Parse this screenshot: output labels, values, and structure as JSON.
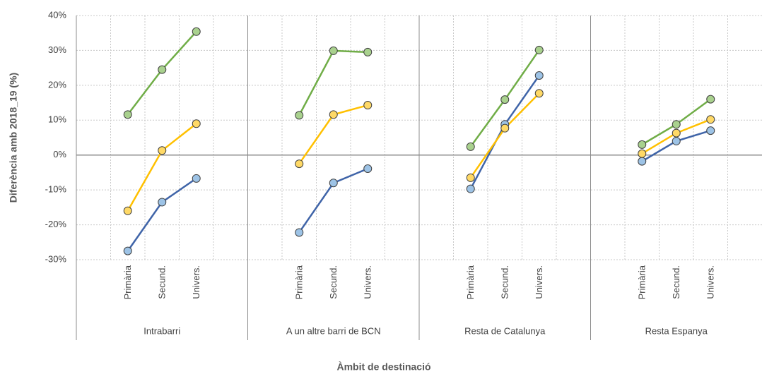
{
  "chart_data": {
    "type": "line",
    "y_axis_label": "Diferència amb  2018_19 (%)",
    "x_axis_label": "Àmbit de destinació",
    "groups": [
      "Intrabarri",
      "A un altre barri de BCN",
      "Resta de Catalunya",
      "Resta Espanya"
    ],
    "categories": [
      "Primària",
      "Secund.",
      "Univers.",
      "Primària",
      "Secund.",
      "Univers.",
      "Primària",
      "Secund.",
      "Univers.",
      "Primària",
      "Secund.",
      "Univers."
    ],
    "series": [
      {
        "color": "#3f64a8",
        "marker_color": "#9dc3e6",
        "values": [
          -27.5,
          -13.5,
          -6.7,
          -22.2,
          -8,
          -3.9,
          -9.7,
          8.8,
          22.8,
          -1.8,
          4,
          7
        ]
      },
      {
        "color": "#ffc000",
        "marker_color": "#ffd966",
        "values": [
          -16,
          1.3,
          9,
          -2.5,
          11.6,
          14.3,
          -6.5,
          7.7,
          17.7,
          0.4,
          6.3,
          10.2
        ]
      },
      {
        "color": "#70ad47",
        "marker_color": "#a9d18e",
        "values": [
          11.6,
          24.5,
          35.4,
          11.4,
          29.9,
          29.5,
          2.4,
          15.9,
          30.1,
          3,
          8.8,
          16
        ]
      }
    ],
    "ylim": [
      -30,
      40
    ],
    "yticks": [
      {
        "value": -30,
        "label": "-30%"
      },
      {
        "value": -20,
        "label": "-20%"
      },
      {
        "value": -10,
        "label": "-10%"
      },
      {
        "value": 0,
        "label": "0%"
      },
      {
        "value": 10,
        "label": "10%"
      },
      {
        "value": 20,
        "label": "20%"
      },
      {
        "value": 30,
        "label": "30%"
      },
      {
        "value": 40,
        "label": "40%"
      }
    ],
    "grid": true
  }
}
